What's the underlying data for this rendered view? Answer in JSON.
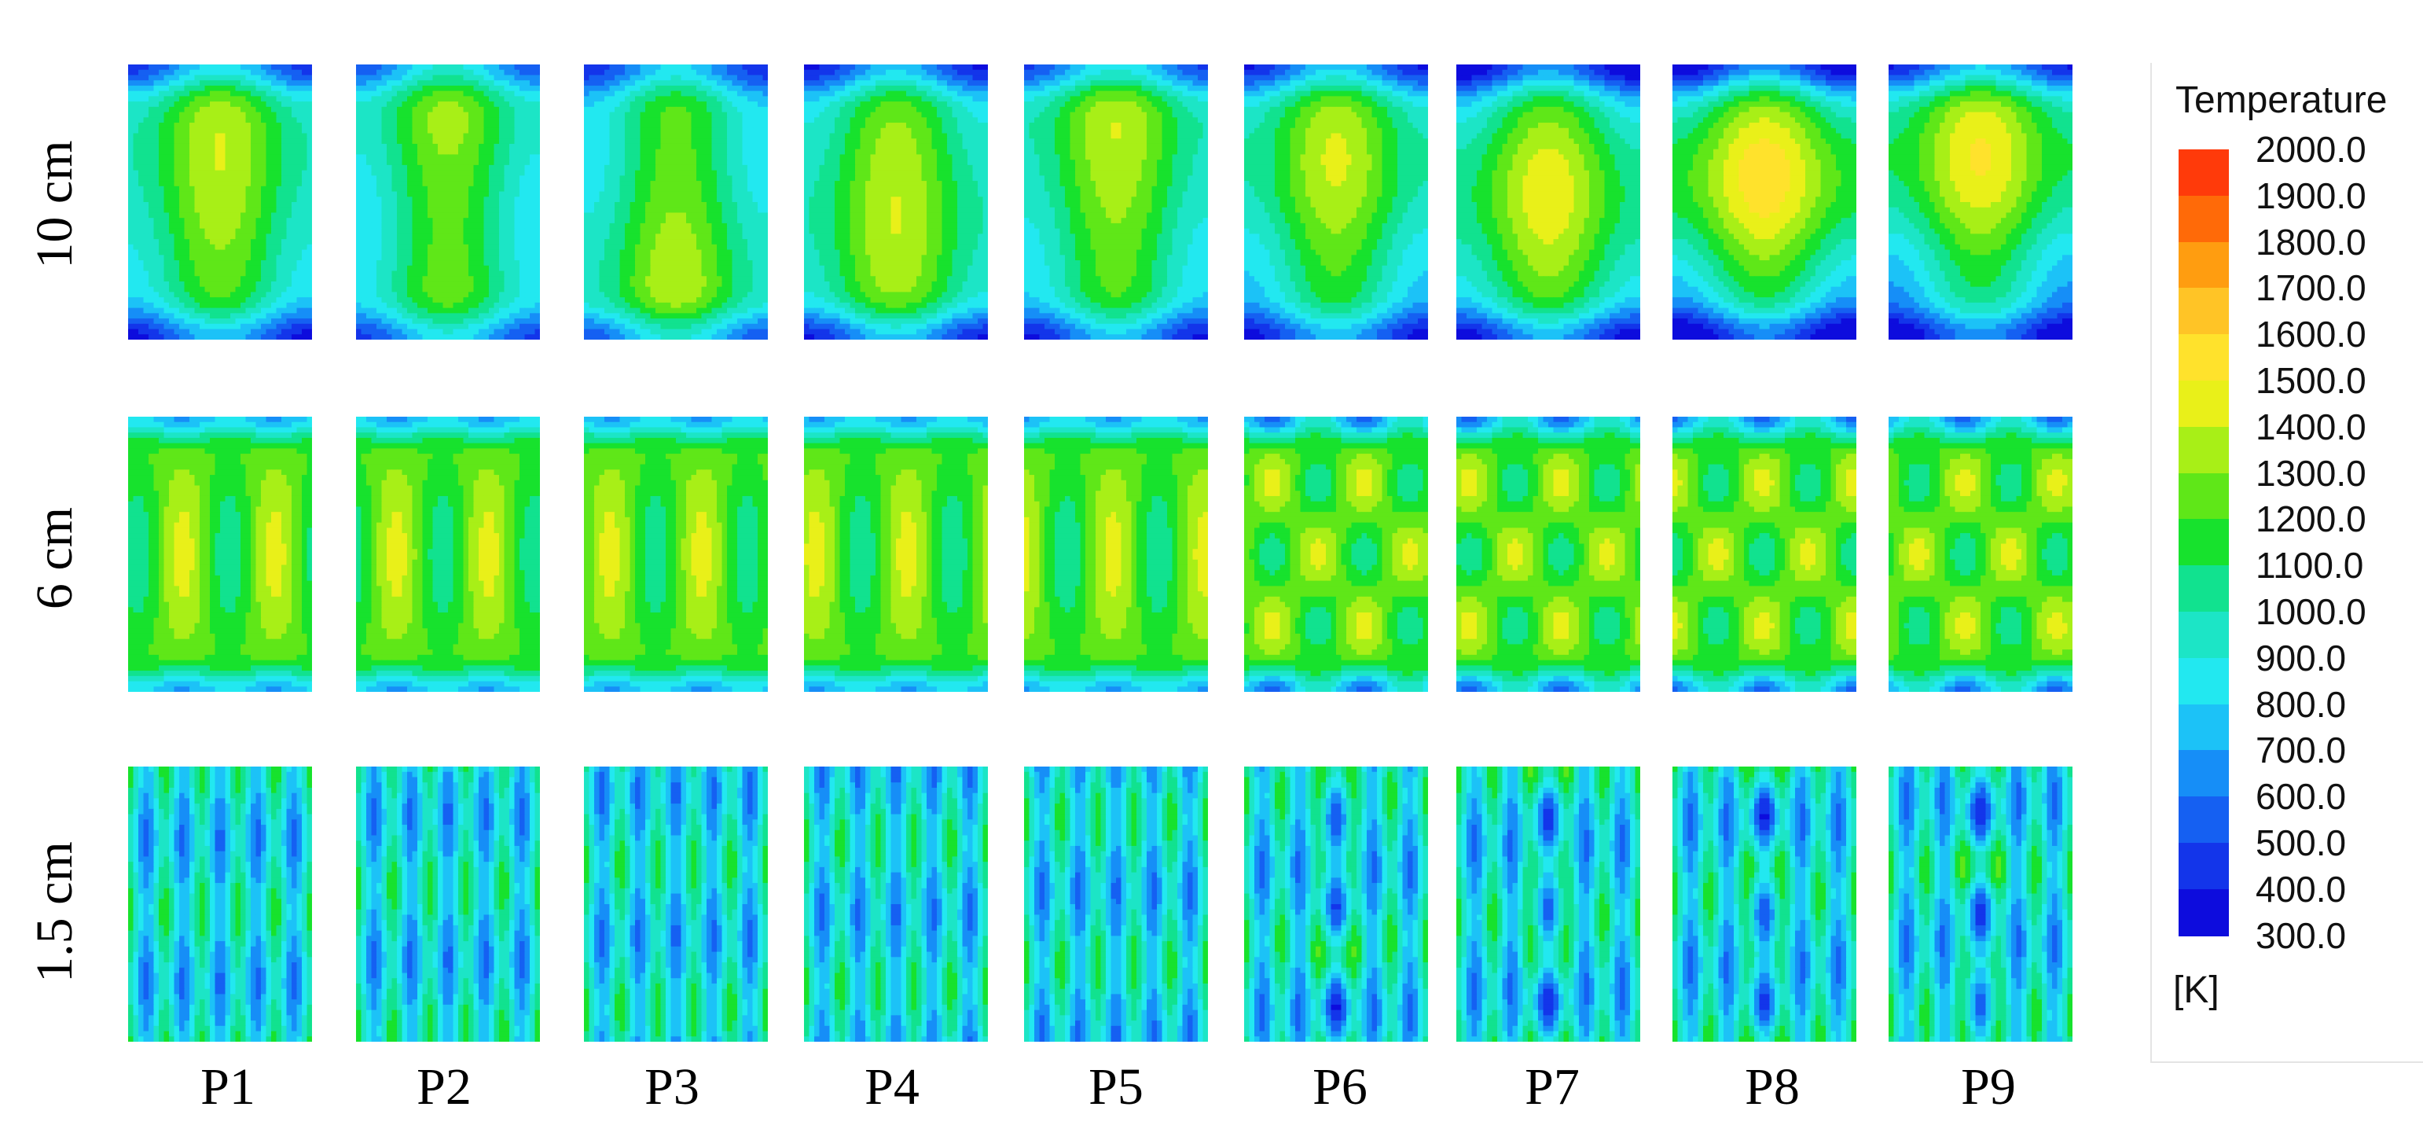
{
  "legend": {
    "title": "Temperature",
    "unit": "[K]",
    "ticks": [
      "2000.0",
      "1900.0",
      "1800.0",
      "1700.0",
      "1600.0",
      "1500.0",
      "1400.0",
      "1300.0",
      "1200.0",
      "1100.0",
      "1000.0",
      "900.0",
      "800.0",
      "700.0",
      "600.0",
      "500.0",
      "400.0",
      "300.0"
    ],
    "colors": [
      "#ff3a0a",
      "#ff6a08",
      "#ff9d10",
      "#ffc426",
      "#ffe22c",
      "#e9f019",
      "#a8ef17",
      "#5fe718",
      "#17e22d",
      "#11e28f",
      "#1ce5c6",
      "#22e8f0",
      "#1cc2f7",
      "#168ef7",
      "#1560f2",
      "#1335ea",
      "#0d0cdd"
    ]
  },
  "rows": [
    {
      "label": "10 cm"
    },
    {
      "label": "6 cm"
    },
    {
      "label": "1.5 cm"
    }
  ],
  "columns": [
    "P1",
    "P2",
    "P3",
    "P4",
    "P5",
    "P6",
    "P7",
    "P8",
    "P9"
  ]
}
